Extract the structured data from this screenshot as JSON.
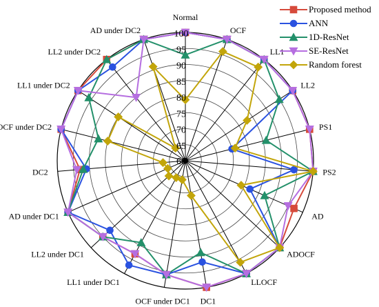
{
  "chart_data": {
    "type": "radar",
    "title": "",
    "categories": [
      "Normal",
      "OCF",
      "LL1",
      "LL2",
      "PS1",
      "PS2",
      "AD",
      "ADOCF",
      "LLOCF",
      "DC1",
      "OCF under DC1",
      "LL1 under DC1",
      "LL2 under DC1",
      "AD under DC1",
      "DC2",
      "OCF under DC2",
      "LL1 under DC2",
      "LL2 under DC2",
      "AD under DC2"
    ],
    "rlim": [
      60,
      100
    ],
    "rticks": [
      65,
      70,
      75,
      80,
      85,
      90,
      95,
      100
    ],
    "legend_position": "top-right",
    "grid": true,
    "series": [
      {
        "name": "Proposed method",
        "color": "#d64a3b",
        "marker": "square",
        "values": [
          100,
          100,
          100,
          100,
          100,
          100,
          97,
          100,
          100,
          100,
          96,
          93,
          95,
          100,
          93,
          100,
          100,
          100,
          100
        ]
      },
      {
        "name": "ANN",
        "color": "#2a52e0",
        "marker": "circle",
        "values": [
          100,
          100,
          100,
          100,
          75,
          94,
          82,
          100,
          100,
          92,
          96,
          97,
          92,
          100,
          91,
          100,
          100,
          97,
          100
        ]
      },
      {
        "name": "1D-ResNet",
        "color": "#23906a",
        "marker": "triangle",
        "values": [
          93,
          100,
          100,
          95,
          86,
          100,
          87,
          100,
          100,
          89,
          96,
          89,
          95,
          100,
          92,
          88,
          96,
          100,
          100
        ]
      },
      {
        "name": "SE-ResNet",
        "color": "#b56ee0",
        "marker": "triangle-down",
        "values": [
          100,
          100,
          100,
          100,
          100,
          100,
          95,
          100,
          100,
          100,
          96,
          93,
          95,
          100,
          94,
          100,
          100,
          85,
          100
        ]
      },
      {
        "name": "Random forest",
        "color": "#c2a50a",
        "marker": "diamond",
        "values": [
          79,
          96,
          97,
          83,
          76,
          100,
          79,
          100,
          96,
          71,
          66,
          66,
          67,
          66,
          67,
          85,
          85,
          65,
          91
        ]
      }
    ]
  }
}
